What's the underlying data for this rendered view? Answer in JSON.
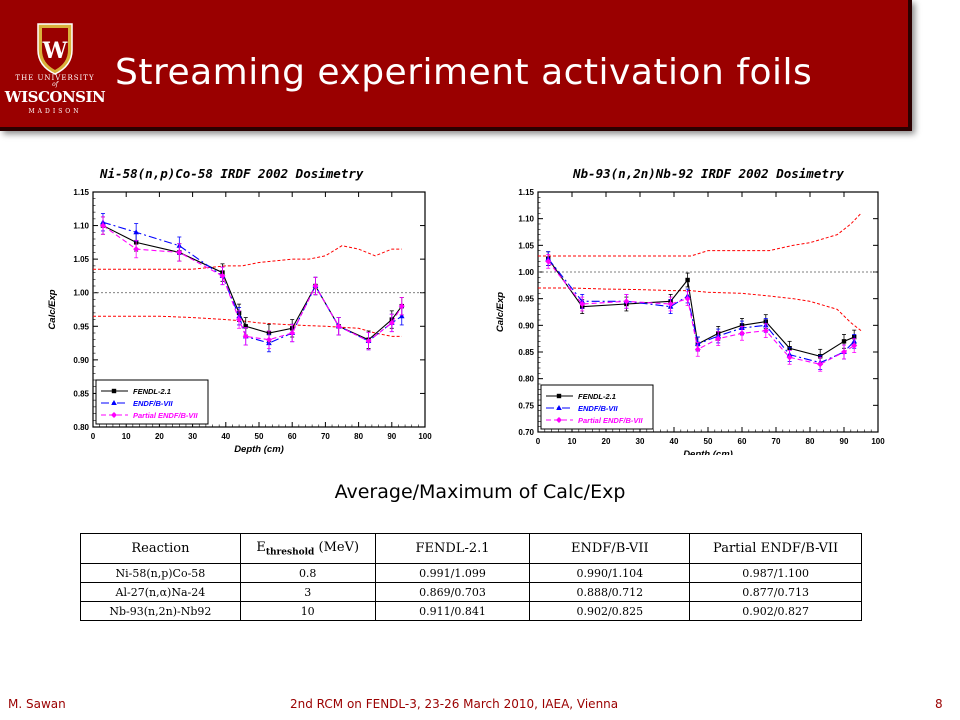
{
  "header": {
    "title": "Streaming experiment activation foils",
    "logo": {
      "line1": "THE UNIVERSITY",
      "line2": "of",
      "line3": "WISCONSIN",
      "line4": "MADISON",
      "crest_letter": "W"
    }
  },
  "colors": {
    "banner": "#9a0000",
    "fendl": "#000000",
    "endf": "#0000ff",
    "partial": "#ff00ff",
    "bounds": "#ff0000"
  },
  "chart_data": [
    {
      "type": "line",
      "title": "Ni-58(n,p)Co-58 IRDF 2002 Dosimetry",
      "xlabel": "Depth (cm)",
      "ylabel": "Calc/Exp",
      "xlim": [
        0,
        100
      ],
      "ylim": [
        0.8,
        1.15
      ],
      "x_ticks": [
        0,
        10,
        20,
        30,
        40,
        50,
        60,
        70,
        80,
        90,
        100
      ],
      "y_ticks": [
        "0.80",
        "0.85",
        "0.90",
        "0.95",
        "1.00",
        "1.05",
        "1.10",
        "1.15"
      ],
      "legend_position": "bottom-left",
      "reference_line": 1.0,
      "series": [
        {
          "name": "FENDL-2.1",
          "x": [
            3,
            13,
            26,
            39,
            44,
            46,
            53,
            60,
            67,
            74,
            83,
            90,
            93
          ],
          "y": [
            1.1,
            1.075,
            1.06,
            1.03,
            0.97,
            0.95,
            0.94,
            0.947,
            1.01,
            0.95,
            0.93,
            0.96,
            0.98
          ]
        },
        {
          "name": "ENDF/B-VII",
          "x": [
            3,
            13,
            26,
            39,
            44,
            46,
            53,
            60,
            67,
            74,
            83,
            90,
            93
          ],
          "y": [
            1.105,
            1.09,
            1.07,
            1.025,
            0.965,
            0.935,
            0.925,
            0.94,
            1.01,
            0.95,
            0.928,
            0.955,
            0.965
          ]
        },
        {
          "name": "Partial ENDF/B-VII",
          "x": [
            3,
            13,
            26,
            39,
            44,
            46,
            53,
            60,
            67,
            74,
            83,
            90,
            93
          ],
          "y": [
            1.1,
            1.065,
            1.06,
            1.025,
            0.96,
            0.935,
            0.93,
            0.94,
            1.01,
            0.95,
            0.928,
            0.955,
            0.98
          ]
        },
        {
          "name": "upper bound",
          "x": [
            0,
            10,
            20,
            30,
            40,
            45,
            50,
            60,
            65,
            70,
            75,
            80,
            85,
            90,
            93
          ],
          "y": [
            1.035,
            1.035,
            1.035,
            1.035,
            1.04,
            1.04,
            1.045,
            1.05,
            1.05,
            1.055,
            1.07,
            1.065,
            1.055,
            1.065,
            1.065
          ]
        },
        {
          "name": "lower bound",
          "x": [
            0,
            10,
            20,
            30,
            40,
            45,
            50,
            60,
            70,
            80,
            85,
            90,
            93
          ],
          "y": [
            0.965,
            0.965,
            0.965,
            0.963,
            0.96,
            0.958,
            0.955,
            0.952,
            0.95,
            0.947,
            0.94,
            0.935,
            0.935
          ]
        }
      ]
    },
    {
      "type": "line",
      "title": "Nb-93(n,2n)Nb-92 IRDF 2002 Dosimetry",
      "xlabel": "Depth (cm)",
      "ylabel": "Calc/Exp",
      "xlim": [
        0,
        100
      ],
      "ylim": [
        0.7,
        1.15
      ],
      "x_ticks": [
        0,
        10,
        20,
        30,
        40,
        50,
        60,
        70,
        80,
        90,
        100
      ],
      "y_ticks": [
        "0.70",
        "0.75",
        "0.80",
        "0.85",
        "0.90",
        "0.95",
        "1.00",
        "1.05",
        "1.10",
        "1.15"
      ],
      "legend_position": "bottom-left",
      "reference_line": 1.0,
      "series": [
        {
          "name": "FENDL-2.1",
          "x": [
            3,
            13,
            26,
            39,
            44,
            47,
            53,
            60,
            67,
            74,
            83,
            90,
            93
          ],
          "y": [
            1.025,
            0.935,
            0.94,
            0.945,
            0.985,
            0.865,
            0.885,
            0.9,
            0.907,
            0.857,
            0.842,
            0.87,
            0.878
          ]
        },
        {
          "name": "ENDF/B-VII",
          "x": [
            3,
            13,
            26,
            39,
            44,
            47,
            53,
            60,
            67,
            74,
            83,
            90,
            93
          ],
          "y": [
            1.025,
            0.945,
            0.945,
            0.935,
            0.955,
            0.865,
            0.88,
            0.895,
            0.9,
            0.845,
            0.83,
            0.85,
            0.87
          ]
        },
        {
          "name": "Partial ENDF/B-VII",
          "x": [
            3,
            13,
            26,
            39,
            44,
            47,
            53,
            60,
            67,
            74,
            83,
            90,
            93
          ],
          "y": [
            1.02,
            0.94,
            0.945,
            0.94,
            0.95,
            0.855,
            0.875,
            0.885,
            0.89,
            0.84,
            0.827,
            0.85,
            0.862
          ]
        },
        {
          "name": "upper bound",
          "x": [
            0,
            10,
            20,
            30,
            40,
            45,
            50,
            60,
            68,
            75,
            80,
            88,
            92,
            95
          ],
          "y": [
            1.03,
            1.03,
            1.03,
            1.03,
            1.03,
            1.03,
            1.04,
            1.04,
            1.04,
            1.05,
            1.055,
            1.07,
            1.09,
            1.11
          ]
        },
        {
          "name": "lower bound",
          "x": [
            0,
            10,
            20,
            30,
            40,
            45,
            50,
            60,
            68,
            75,
            80,
            88,
            92,
            95
          ],
          "y": [
            0.97,
            0.97,
            0.968,
            0.967,
            0.965,
            0.965,
            0.962,
            0.96,
            0.955,
            0.95,
            0.945,
            0.93,
            0.905,
            0.89
          ]
        }
      ]
    }
  ],
  "charts_text": [
    {
      "title": "Ni-58(n,p)Co-58 IRDF 2002 Dosimetry",
      "ylabel": "Calc/Exp",
      "xlabel": "Depth (cm)"
    },
    {
      "title": "Nb-93(n,2n)Nb-92 IRDF 2002 Dosimetry",
      "ylabel": "Calc/Exp",
      "xlabel": "Depth (cm)"
    }
  ],
  "legend": [
    "FENDL-2.1",
    "ENDF/B-VII",
    "Partial ENDF/B-VII"
  ],
  "caption": "Average/Maximum of Calc/Exp",
  "table": {
    "headers": {
      "reaction": "Reaction",
      "threshold_main": "E",
      "threshold_sub": "threshold",
      "threshold_unit": " (MeV)",
      "fendl": "FENDL-2.1",
      "endf": "ENDF/B-VII",
      "partial": "Partial ENDF/B-VII"
    },
    "rows": [
      {
        "reaction": "Ni-58(n,p)Co-58",
        "threshold": "0.8",
        "fendl": "0.991/1.099",
        "endf": "0.990/1.104",
        "partial": "0.987/1.100"
      },
      {
        "reaction": "Al-27(n,α)Na-24",
        "threshold": "3",
        "fendl": "0.869/0.703",
        "endf": "0.888/0.712",
        "partial": "0.877/0.713"
      },
      {
        "reaction": "Nb-93(n,2n)-Nb92",
        "threshold": "10",
        "fendl": "0.911/0.841",
        "endf": "0.902/0.825",
        "partial": "0.902/0.827"
      }
    ]
  },
  "footer": {
    "author": "M. Sawan",
    "meeting": "2nd RCM on FENDL-3, 23-26 March 2010, IAEA, Vienna",
    "page": "8"
  }
}
